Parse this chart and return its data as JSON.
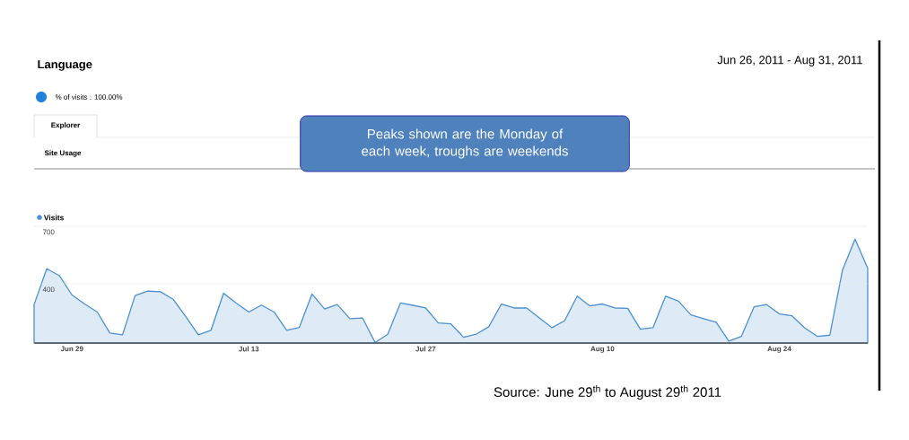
{
  "chart_data": {
    "type": "area",
    "title": "Language",
    "subtitle": "Jun 26, 2011 - Aug 31, 2011",
    "x": [
      "2011-06-26",
      "2011-06-27",
      "2011-06-28",
      "2011-06-29",
      "2011-06-30",
      "2011-07-01",
      "2011-07-02",
      "2011-07-03",
      "2011-07-04",
      "2011-07-05",
      "2011-07-06",
      "2011-07-07",
      "2011-07-08",
      "2011-07-09",
      "2011-07-10",
      "2011-07-11",
      "2011-07-12",
      "2011-07-13",
      "2011-07-14",
      "2011-07-15",
      "2011-07-16",
      "2011-07-17",
      "2011-07-18",
      "2011-07-19",
      "2011-07-20",
      "2011-07-21",
      "2011-07-22",
      "2011-07-23",
      "2011-07-24",
      "2011-07-25",
      "2011-07-26",
      "2011-07-27",
      "2011-07-28",
      "2011-07-29",
      "2011-07-30",
      "2011-07-31",
      "2011-08-01",
      "2011-08-02",
      "2011-08-03",
      "2011-08-04",
      "2011-08-05",
      "2011-08-06",
      "2011-08-07",
      "2011-08-08",
      "2011-08-09",
      "2011-08-10",
      "2011-08-11",
      "2011-08-12",
      "2011-08-13",
      "2011-08-14",
      "2011-08-15",
      "2011-08-16",
      "2011-08-17",
      "2011-08-18",
      "2011-08-19",
      "2011-08-20",
      "2011-08-21",
      "2011-08-22",
      "2011-08-23",
      "2011-08-24",
      "2011-08-25",
      "2011-08-26",
      "2011-08-27",
      "2011-08-28",
      "2011-08-29",
      "2011-08-30",
      "2011-08-31"
    ],
    "series": [
      {
        "name": "Visits",
        "color": "#4a90d2",
        "values": [
          291,
          478,
          442,
          341,
          294,
          252,
          142,
          133,
          338,
          361,
          358,
          319,
          229,
          133,
          156,
          350,
          299,
          252,
          288,
          252,
          156,
          172,
          346,
          268,
          291,
          217,
          221,
          92,
          136,
          299,
          287,
          273,
          195,
          190,
          120,
          136,
          175,
          294,
          273,
          273,
          221,
          170,
          206,
          335,
          284,
          294,
          273,
          271,
          162,
          170,
          335,
          310,
          237,
          217,
          198,
          100,
          125,
          279,
          291,
          242,
          232,
          170,
          125,
          131,
          470,
          633,
          481
        ]
      }
    ],
    "xlim": [
      "2011-06-26",
      "2011-08-31"
    ],
    "xticks": [
      {
        "value": "2011-06-29",
        "label": "Jun 29"
      },
      {
        "value": "2011-07-13",
        "label": "Jul 13"
      },
      {
        "value": "2011-07-27",
        "label": "Jul 27"
      },
      {
        "value": "2011-08-10",
        "label": "Aug 10"
      },
      {
        "value": "2011-08-24",
        "label": "Aug 24"
      }
    ],
    "ylim": [
      90,
      700
    ],
    "yticks": [
      400,
      700
    ],
    "grid": "y",
    "legend": "top left",
    "annotations": [
      "% of visits : 100.00%",
      "Explorer",
      "Site Usage",
      "Peaks shown are the Monday of each week, troughs are weekends",
      "Source: June 29$^{th}$ to August 29$^{th}$ 2011"
    ]
  }
}
